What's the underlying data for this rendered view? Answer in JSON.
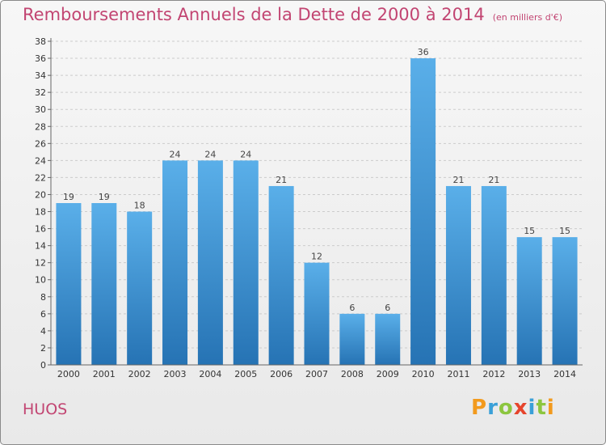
{
  "title": "Remboursements Annuels de la Dette de 2000 à 2014",
  "unit_note": "(en milliers d'€)",
  "place_name": "HUOS",
  "logo": {
    "text": "Proxiti",
    "letters": [
      {
        "ch": "P",
        "color": "#f29a1d"
      },
      {
        "ch": "r",
        "color": "#3aa0d8"
      },
      {
        "ch": "o",
        "color": "#8cc63f"
      },
      {
        "ch": "x",
        "color": "#e6452d"
      },
      {
        "ch": "i",
        "color": "#3aa0d8"
      },
      {
        "ch": "t",
        "color": "#8cc63f"
      },
      {
        "ch": "i",
        "color": "#f29a1d"
      }
    ]
  },
  "colors": {
    "bar_top": "#5aafe9",
    "bar_bottom": "#2673b4",
    "title": "#c24572",
    "grid": "#cccccc"
  },
  "chart_data": {
    "type": "bar",
    "categories": [
      "2000",
      "2001",
      "2002",
      "2003",
      "2004",
      "2005",
      "2006",
      "2007",
      "2008",
      "2009",
      "2010",
      "2011",
      "2012",
      "2013",
      "2014"
    ],
    "values": [
      19,
      19,
      18,
      24,
      24,
      24,
      21,
      12,
      6,
      6,
      36,
      21,
      21,
      15,
      15
    ],
    "title": "Remboursements Annuels de la Dette de 2000 à 2014",
    "ylim": [
      0,
      38
    ],
    "yticks": [
      0,
      2,
      4,
      6,
      8,
      10,
      12,
      14,
      16,
      18,
      20,
      22,
      24,
      26,
      28,
      30,
      32,
      34,
      36,
      38
    ],
    "grid": "dashed-horizontal",
    "show_value_labels": true
  }
}
